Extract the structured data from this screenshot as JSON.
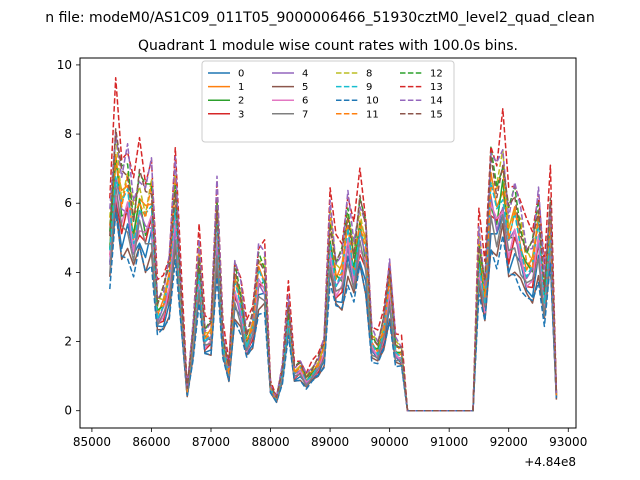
{
  "suptitle": "n file: modeM0/AS1C09_011T05_9000006466_51930cztM0_level2_quad_clean",
  "chart_data": {
    "type": "line",
    "title": "Quadrant 1 module wise count rates with 100.0s bins.",
    "xlabel": "",
    "ylabel": "",
    "x_offset_label": "+4.84e8",
    "xlim": [
      84800,
      93130
    ],
    "ylim": [
      -0.5,
      10.2
    ],
    "x_ticks": [
      85000,
      86000,
      87000,
      88000,
      89000,
      90000,
      91000,
      92000,
      93000
    ],
    "x_tick_labels": [
      "85000",
      "86000",
      "87000",
      "88000",
      "89000",
      "90000",
      "91000",
      "92000",
      "93000"
    ],
    "y_ticks": [
      0,
      2,
      4,
      6,
      8,
      10
    ],
    "y_tick_labels": [
      "0",
      "2",
      "4",
      "6",
      "8",
      "10"
    ],
    "legend": {
      "location": "upper center",
      "columns": 4
    },
    "x": [
      85300,
      85400,
      85500,
      85600,
      85700,
      85800,
      85900,
      86000,
      86100,
      86200,
      86300,
      86400,
      86500,
      86600,
      86700,
      86800,
      86900,
      87000,
      87100,
      87200,
      87300,
      87400,
      87500,
      87600,
      87700,
      87800,
      87900,
      88000,
      88100,
      88200,
      88300,
      88400,
      88500,
      88600,
      88700,
      88800,
      88900,
      89000,
      89100,
      89200,
      89300,
      89400,
      89500,
      89600,
      89700,
      89800,
      89900,
      90000,
      90100,
      90200,
      90300,
      91400,
      91500,
      91600,
      91700,
      91800,
      91900,
      92000,
      92100,
      92200,
      92300,
      92400,
      92500,
      92600,
      92700,
      92800
    ],
    "base": [
      4.4,
      6.6,
      5.4,
      5.7,
      4.7,
      5.5,
      5.0,
      5.4,
      2.6,
      2.8,
      3.4,
      5.5,
      2.8,
      0.5,
      1.9,
      3.8,
      1.9,
      2.0,
      5.0,
      1.8,
      1.0,
      3.3,
      2.8,
      1.8,
      2.2,
      3.6,
      3.5,
      0.6,
      0.3,
      1.0,
      2.6,
      1.0,
      1.1,
      0.8,
      1.0,
      1.2,
      1.6,
      4.6,
      3.5,
      3.6,
      4.7,
      3.8,
      4.9,
      4.2,
      1.8,
      1.6,
      2.1,
      3.3,
      1.6,
      1.5,
      0.0,
      0.0,
      4.1,
      3.0,
      5.8,
      5.3,
      6.0,
      4.6,
      5.0,
      4.4,
      3.8,
      3.8,
      4.8,
      3.0,
      4.9,
      0.4
    ],
    "series": [
      {
        "name": "0",
        "color": "#1f77b4",
        "dash": false,
        "scale": 0.92
      },
      {
        "name": "1",
        "color": "#ff7f0e",
        "dash": false,
        "scale": 1.12
      },
      {
        "name": "2",
        "color": "#2ca02c",
        "dash": false,
        "scale": 1.06
      },
      {
        "name": "3",
        "color": "#d62728",
        "dash": false,
        "scale": 0.98
      },
      {
        "name": "4",
        "color": "#9467bd",
        "dash": false,
        "scale": 1.02
      },
      {
        "name": "5",
        "color": "#8c564b",
        "dash": false,
        "scale": 0.85
      },
      {
        "name": "6",
        "color": "#e377c2",
        "dash": false,
        "scale": 1.0
      },
      {
        "name": "7",
        "color": "#7f7f7f",
        "dash": false,
        "scale": 0.95
      },
      {
        "name": "8",
        "color": "#bcbd22",
        "dash": true,
        "scale": 1.2
      },
      {
        "name": "9",
        "color": "#17becf",
        "dash": true,
        "scale": 1.08
      },
      {
        "name": "10",
        "color": "#1f77b4",
        "dash": true,
        "scale": 0.82
      },
      {
        "name": "11",
        "color": "#ff7f0e",
        "dash": true,
        "scale": 1.15
      },
      {
        "name": "12",
        "color": "#2ca02c",
        "dash": true,
        "scale": 1.24
      },
      {
        "name": "13",
        "color": "#d62728",
        "dash": true,
        "scale": 1.38
      },
      {
        "name": "14",
        "color": "#9467bd",
        "dash": true,
        "scale": 1.28
      },
      {
        "name": "15",
        "color": "#8c564b",
        "dash": true,
        "scale": 1.22
      }
    ]
  }
}
